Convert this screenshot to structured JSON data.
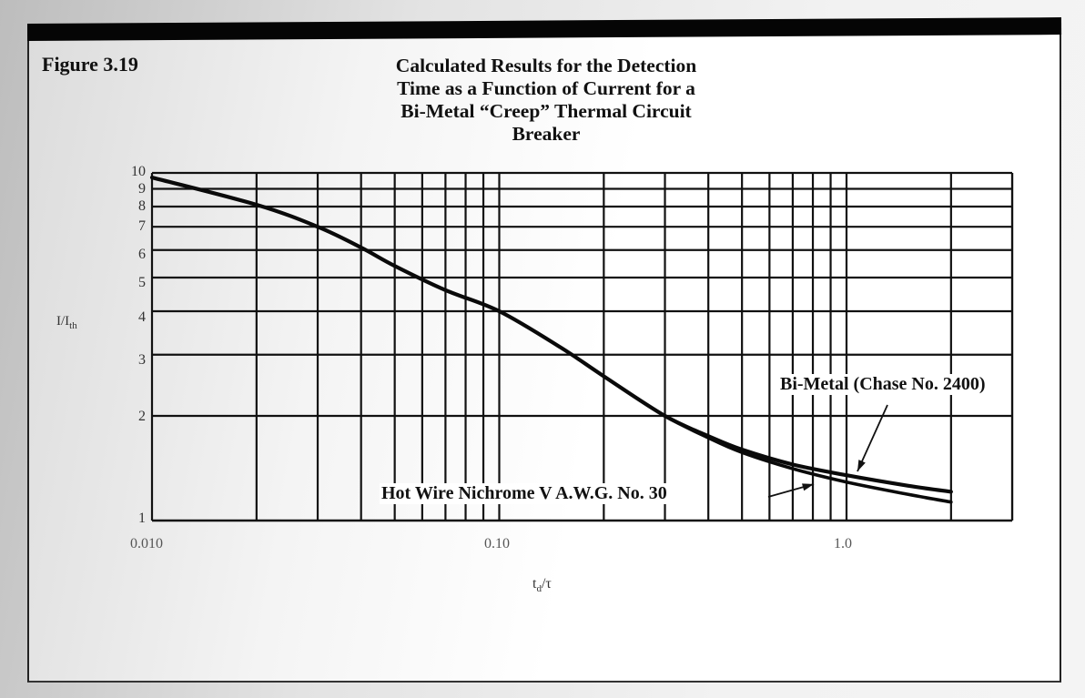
{
  "figure": {
    "label": "Figure 3.19",
    "title_lines": [
      "Calculated Results for the Detection",
      "Time as a Function of Current for a",
      "Bi-Metal “Creep” Thermal Circuit",
      "Breaker"
    ]
  },
  "axes": {
    "y_label_main": "I/I",
    "y_label_sub": "th",
    "x_label_main": "t",
    "x_label_sub": "d",
    "x_label_tail": "/τ",
    "y_ticks": [
      "10",
      "9",
      "8",
      "7",
      "6",
      "5",
      "4",
      "3",
      "2",
      "1"
    ],
    "x_ticks": [
      "0.010",
      "0.10",
      "1.0"
    ]
  },
  "annotations": {
    "bimetal": "Bi-Metal (Chase No. 2400)",
    "hotwire": "Hot Wire Nichrome V A.W.G. No. 30"
  },
  "chart_data": {
    "type": "line",
    "title": "Calculated Results for the Detection Time as a Function of Current for a Bi-Metal “Creep” Thermal Circuit Breaker",
    "xlabel": "t_d/τ",
    "ylabel": "I/I_th",
    "xscale": "log",
    "yscale": "log",
    "xlim": [
      0.01,
      3.0
    ],
    "ylim": [
      1,
      10
    ],
    "grid": true,
    "x_tick_labels": [
      "0.010",
      "0.10",
      "1.0"
    ],
    "y_tick_labels": [
      "1",
      "2",
      "3",
      "4",
      "5",
      "6",
      "7",
      "8",
      "9",
      "10"
    ],
    "x": [
      0.01,
      0.02,
      0.03,
      0.04,
      0.05,
      0.07,
      0.1,
      0.15,
      0.2,
      0.3,
      0.4,
      0.5,
      0.7,
      1.0,
      1.5,
      2.0
    ],
    "series": [
      {
        "name": "Bi-Metal (Chase No. 2400)",
        "values": [
          9.7,
          8.1,
          7.0,
          6.1,
          5.4,
          4.6,
          4.0,
          3.15,
          2.6,
          2.0,
          1.75,
          1.6,
          1.45,
          1.35,
          1.26,
          1.21
        ]
      },
      {
        "name": "Hot Wire Nichrome V A.W.G. No. 30",
        "values": [
          9.7,
          8.1,
          7.0,
          6.1,
          5.4,
          4.6,
          4.0,
          3.15,
          2.6,
          2.0,
          1.73,
          1.57,
          1.41,
          1.29,
          1.19,
          1.13
        ]
      }
    ],
    "legend": "inline annotations with arrows"
  }
}
